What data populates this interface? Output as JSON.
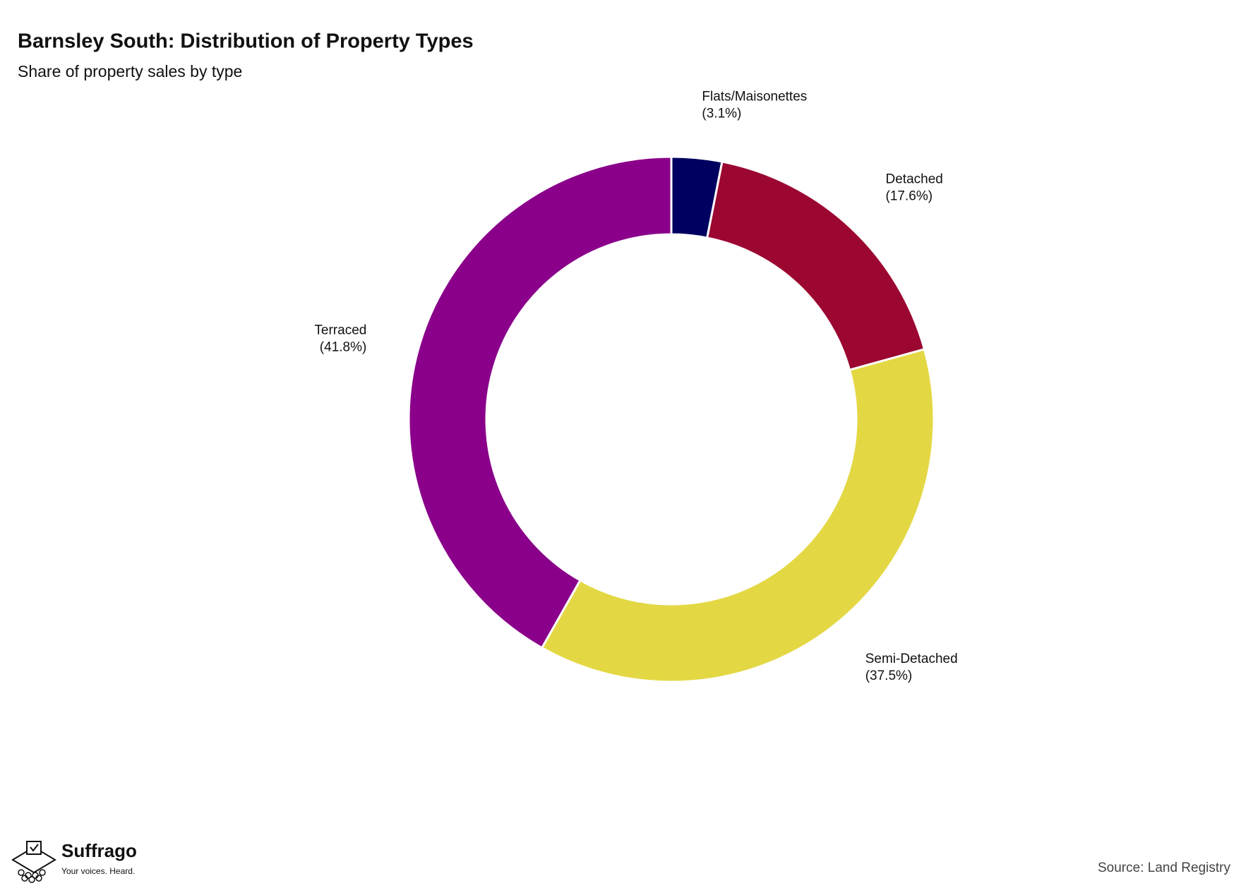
{
  "chart_data": {
    "type": "donut",
    "title": "Barnsley South: Distribution of Property Types",
    "subtitle": "Share of property sales by type",
    "categories": [
      "Flats/Maisonettes",
      "Detached",
      "Semi-Detached",
      "Terraced"
    ],
    "values": [
      3.1,
      17.6,
      37.5,
      41.8
    ],
    "value_labels": [
      "(3.1%)",
      "(17.6%)",
      "(37.5%)",
      "(41.8%)"
    ],
    "colors": [
      "#000060",
      "#9b0731",
      "#e3d843",
      "#8a008a"
    ],
    "source": "Source: Land Registry"
  },
  "brand": {
    "name": "Suffrago",
    "tagline": "Your voices. Heard."
  }
}
